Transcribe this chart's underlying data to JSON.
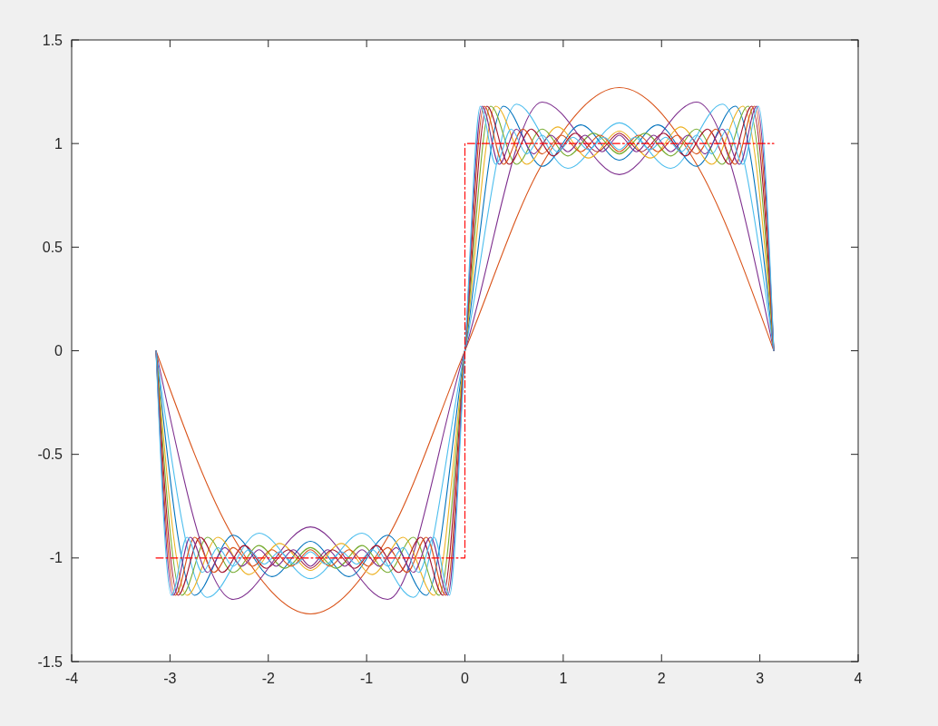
{
  "chart_data": {
    "type": "line",
    "xlim": [
      -4,
      4
    ],
    "ylim": [
      -1.5,
      1.5
    ],
    "xticks": [
      -4,
      -3,
      -2,
      -1,
      0,
      1,
      2,
      3,
      4
    ],
    "yticks": [
      -1.5,
      -1,
      -0.5,
      0,
      0.5,
      1,
      1.5
    ],
    "grid": false,
    "series": [
      {
        "color": "#d95319",
        "x": [
          -3.142,
          -2.356,
          -1.571,
          -0.785,
          0,
          0.785,
          1.571,
          2.356,
          3.142
        ],
        "values": [
          0,
          -0.9,
          -1.27,
          -0.9,
          0,
          0.9,
          1.27,
          0.9,
          0
        ]
      },
      {
        "color": "#7e2f8e",
        "x": [
          -3.142,
          -2.356,
          -1.571,
          -0.785,
          0,
          0.785,
          1.571,
          2.356,
          3.142
        ],
        "values": [
          0,
          -1.2,
          -0.85,
          -1.2,
          0,
          1.2,
          0.85,
          1.2,
          0
        ]
      },
      {
        "color": "#4dbeee",
        "x": [
          -3.142,
          -2.618,
          -2.094,
          -1.571,
          -1.047,
          -0.524,
          0,
          0.524,
          1.047,
          1.571,
          2.094,
          2.618,
          3.142
        ],
        "values": [
          0,
          -1.19,
          -0.88,
          -1.1,
          -0.88,
          -1.19,
          0,
          1.19,
          0.88,
          1.1,
          0.88,
          1.19,
          0
        ]
      },
      {
        "color": "#0072bd",
        "x": [
          -3.142,
          -2.749,
          -2.356,
          -1.963,
          -1.571,
          -1.178,
          -0.785,
          -0.393,
          0,
          0.393,
          0.785,
          1.178,
          1.571,
          1.963,
          2.356,
          2.749,
          3.142
        ],
        "values": [
          0,
          -1.18,
          -0.89,
          -1.09,
          -0.92,
          -1.09,
          -0.89,
          -1.18,
          0,
          1.18,
          0.89,
          1.09,
          0.92,
          1.09,
          0.89,
          1.18,
          0
        ]
      },
      {
        "color": "#edb120",
        "x": [
          -3.142,
          -2.827,
          -2.513,
          -2.199,
          -1.885,
          -1.571,
          -1.257,
          -0.942,
          -0.628,
          -0.314,
          0,
          0.314,
          0.628,
          0.942,
          1.257,
          1.571,
          1.885,
          2.199,
          2.513,
          2.827,
          3.142
        ],
        "values": [
          0,
          -1.18,
          -0.9,
          -1.08,
          -0.93,
          -1.06,
          -0.93,
          -1.08,
          -0.9,
          -1.18,
          0,
          1.18,
          0.9,
          1.08,
          0.93,
          1.06,
          0.93,
          1.08,
          0.9,
          1.18,
          0
        ]
      },
      {
        "color": "#77ac30",
        "x": [
          -3.142,
          -2.88,
          -2.618,
          -2.356,
          -2.094,
          -1.833,
          -1.571,
          -1.309,
          -1.047,
          -0.785,
          -0.524,
          -0.262,
          0,
          0.262,
          0.524,
          0.785,
          1.047,
          1.309,
          1.571,
          1.833,
          2.094,
          2.356,
          2.618,
          2.88,
          3.142
        ],
        "values": [
          0,
          -1.18,
          -0.9,
          -1.07,
          -0.94,
          -1.05,
          -0.95,
          -1.05,
          -0.94,
          -1.07,
          -0.9,
          -1.18,
          0,
          1.18,
          0.9,
          1.07,
          0.94,
          1.05,
          0.95,
          1.05,
          0.94,
          1.07,
          0.9,
          1.18,
          0
        ]
      },
      {
        "color": "#a2142f",
        "x": [
          -3.142,
          -2.917,
          -2.693,
          -2.468,
          -2.244,
          -2.02,
          -1.795,
          -1.571,
          -1.346,
          -1.122,
          -0.898,
          -0.673,
          -0.449,
          -0.224,
          0,
          0.224,
          0.449,
          0.673,
          0.898,
          1.122,
          1.346,
          1.571,
          1.795,
          2.02,
          2.244,
          2.468,
          2.693,
          2.917,
          3.142
        ],
        "values": [
          0,
          -1.18,
          -0.9,
          -1.07,
          -0.94,
          -1.05,
          -0.96,
          -1.05,
          -0.96,
          -1.05,
          -0.94,
          -1.07,
          -0.9,
          -1.18,
          0,
          1.18,
          0.9,
          1.07,
          0.94,
          1.05,
          0.96,
          1.05,
          0.96,
          1.05,
          0.94,
          1.07,
          0.9,
          1.18,
          0
        ]
      },
      {
        "color": "#d95319",
        "x": [
          -3.142,
          -2.945,
          -2.749,
          -2.553,
          -2.356,
          -2.16,
          -1.963,
          -1.767,
          -1.571,
          -1.374,
          -1.178,
          -0.982,
          -0.785,
          -0.589,
          -0.393,
          -0.196,
          0,
          0.196,
          0.393,
          0.589,
          0.785,
          0.982,
          1.178,
          1.374,
          1.571,
          1.767,
          1.963,
          2.16,
          2.356,
          2.553,
          2.749,
          2.945,
          3.142
        ],
        "values": [
          0,
          -1.18,
          -0.9,
          -1.07,
          -0.95,
          -1.04,
          -0.96,
          -1.04,
          -0.96,
          -1.04,
          -0.96,
          -1.04,
          -0.95,
          -1.07,
          -0.9,
          -1.18,
          0,
          1.18,
          0.9,
          1.07,
          0.95,
          1.04,
          0.96,
          1.04,
          0.96,
          1.04,
          0.96,
          1.04,
          0.95,
          1.07,
          0.9,
          1.18,
          0
        ]
      },
      {
        "color": "#7e2f8e",
        "x": [
          -3.142,
          -2.967,
          -2.793,
          -2.618,
          -2.443,
          -2.269,
          -2.094,
          -1.92,
          -1.745,
          -1.571,
          -1.396,
          -1.222,
          -1.047,
          -0.873,
          -0.698,
          -0.524,
          -0.349,
          -0.175,
          0,
          0.175,
          0.349,
          0.524,
          0.698,
          0.873,
          1.047,
          1.222,
          1.396,
          1.571,
          1.745,
          1.92,
          2.094,
          2.269,
          2.443,
          2.618,
          2.793,
          2.967,
          3.142
        ],
        "values": [
          0,
          -1.18,
          -0.9,
          -1.07,
          -0.95,
          -1.04,
          -0.96,
          -1.04,
          -0.96,
          -1.04,
          -0.96,
          -1.04,
          -0.96,
          -1.04,
          -0.95,
          -1.07,
          -0.9,
          -1.18,
          0,
          1.18,
          0.9,
          1.07,
          0.95,
          1.04,
          0.96,
          1.04,
          0.96,
          1.04,
          0.96,
          1.04,
          0.96,
          1.04,
          0.95,
          1.07,
          0.9,
          1.18,
          0
        ]
      },
      {
        "color": "#4dbeee",
        "x": [
          -3.142,
          -2.985,
          -2.827,
          -2.67,
          -2.513,
          -2.356,
          -2.199,
          -2.042,
          -1.885,
          -1.728,
          -1.571,
          -1.414,
          -1.257,
          -1.1,
          -0.942,
          -0.785,
          -0.628,
          -0.471,
          -0.314,
          -0.157,
          0,
          0.157,
          0.314,
          0.471,
          0.628,
          0.785,
          0.942,
          1.1,
          1.257,
          1.414,
          1.571,
          1.728,
          1.885,
          2.042,
          2.199,
          2.356,
          2.513,
          2.67,
          2.827,
          2.985,
          3.142
        ],
        "values": [
          0,
          -1.18,
          -0.9,
          -1.07,
          -0.95,
          -1.04,
          -0.96,
          -1.03,
          -0.97,
          -1.03,
          -0.97,
          -1.03,
          -0.97,
          -1.03,
          -0.96,
          -1.04,
          -0.95,
          -1.07,
          -0.9,
          -1.18,
          0,
          1.18,
          0.9,
          1.07,
          0.95,
          1.04,
          0.96,
          1.03,
          0.97,
          1.03,
          0.97,
          1.03,
          0.97,
          1.03,
          0.96,
          1.04,
          0.95,
          1.07,
          0.9,
          1.18,
          0
        ]
      },
      {
        "type": "step",
        "color": "#ff0000",
        "line_style": "dashed",
        "x": [
          -3.142,
          0,
          3.142
        ],
        "values": [
          -1,
          1,
          1
        ]
      }
    ]
  }
}
